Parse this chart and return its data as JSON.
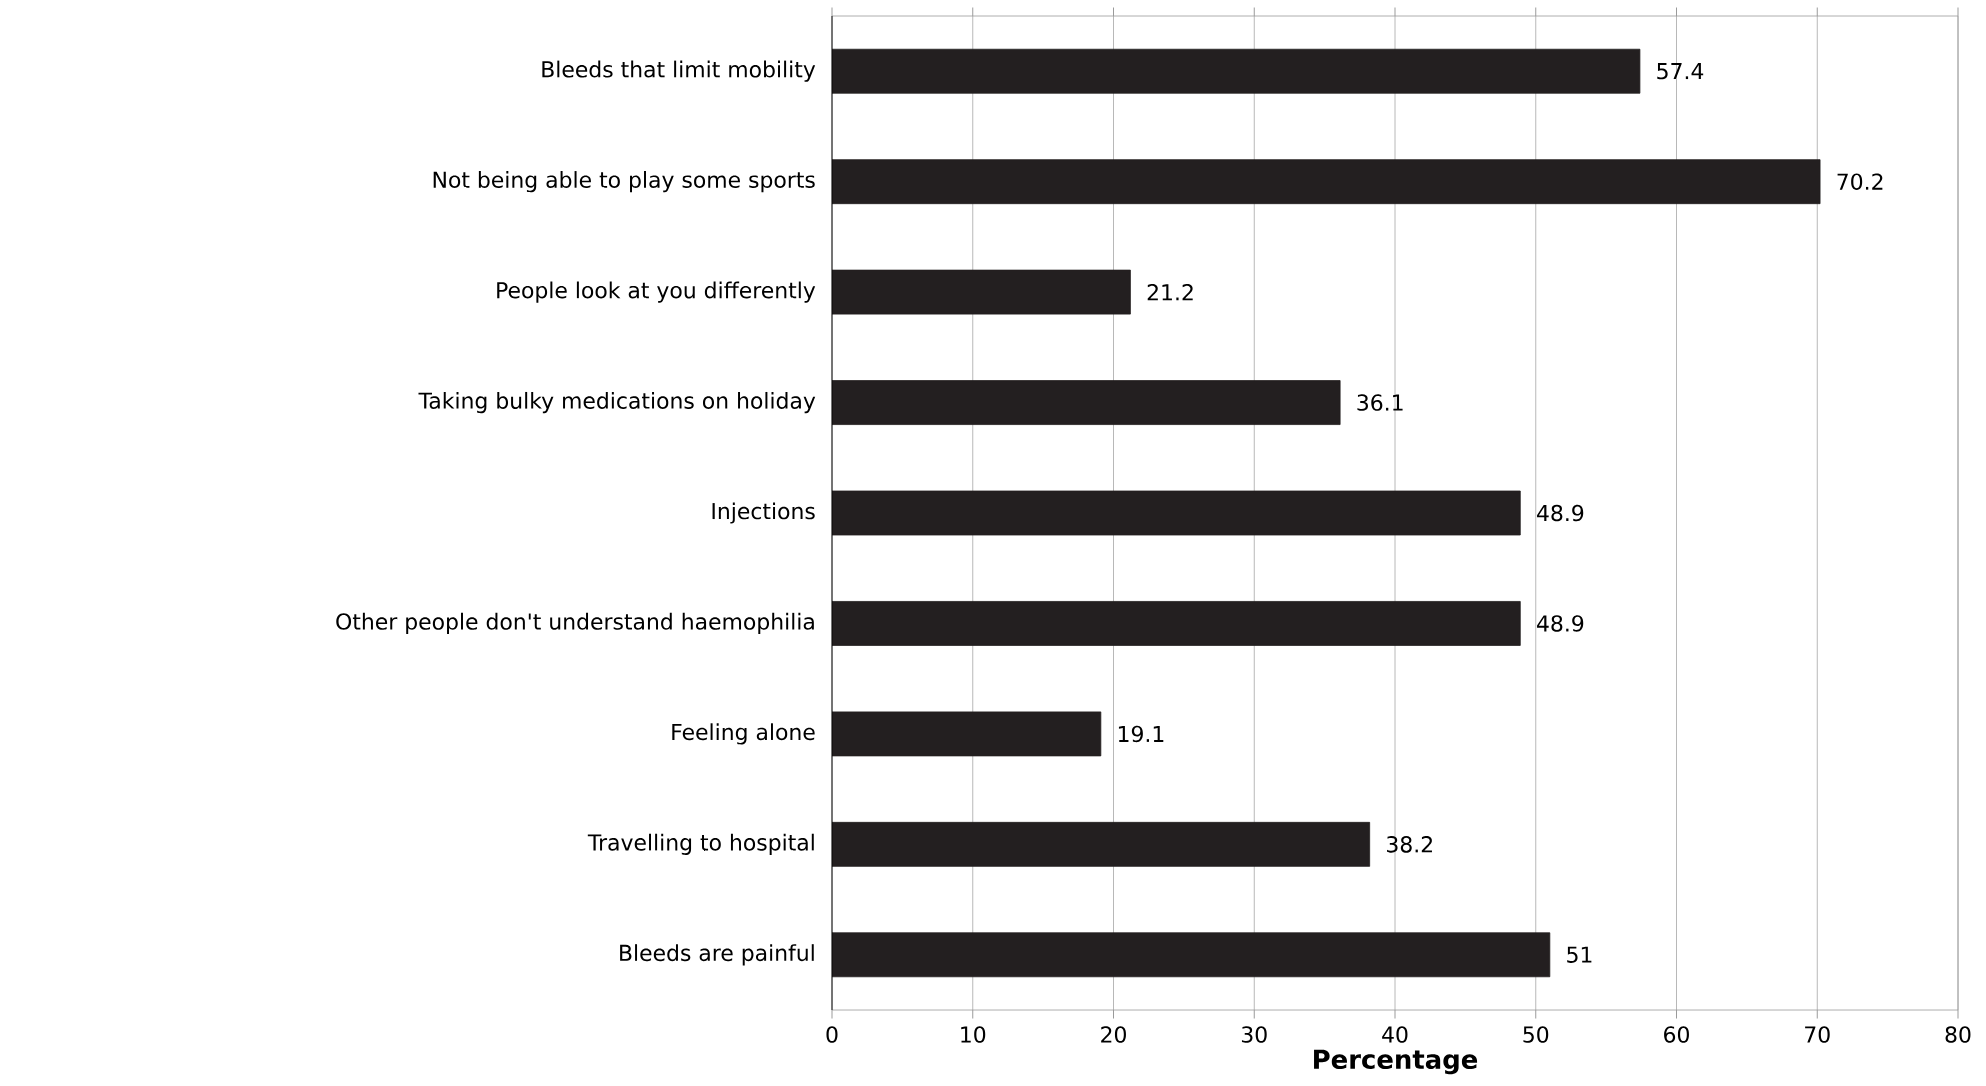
{
  "chart_data": {
    "type": "bar",
    "orientation": "horizontal",
    "xlabel": "Percentage",
    "categories": [
      "Bleeds that limit mobility",
      "Not being able to play some sports",
      "People look at you differently",
      "Taking bulky medications on holiday",
      "Injections",
      "Other people don't understand haemophilia",
      "Feeling alone",
      "Travelling to hospital",
      "Bleeds are painful"
    ],
    "values": [
      57.4,
      70.2,
      21.2,
      36.1,
      48.9,
      48.9,
      19.1,
      38.2,
      51
    ],
    "color": "#231f20",
    "xlim": [
      0,
      80
    ],
    "xticks": [
      0,
      10,
      20,
      30,
      40,
      50,
      60,
      70,
      80
    ],
    "grid": "x",
    "data_labels": true
  }
}
